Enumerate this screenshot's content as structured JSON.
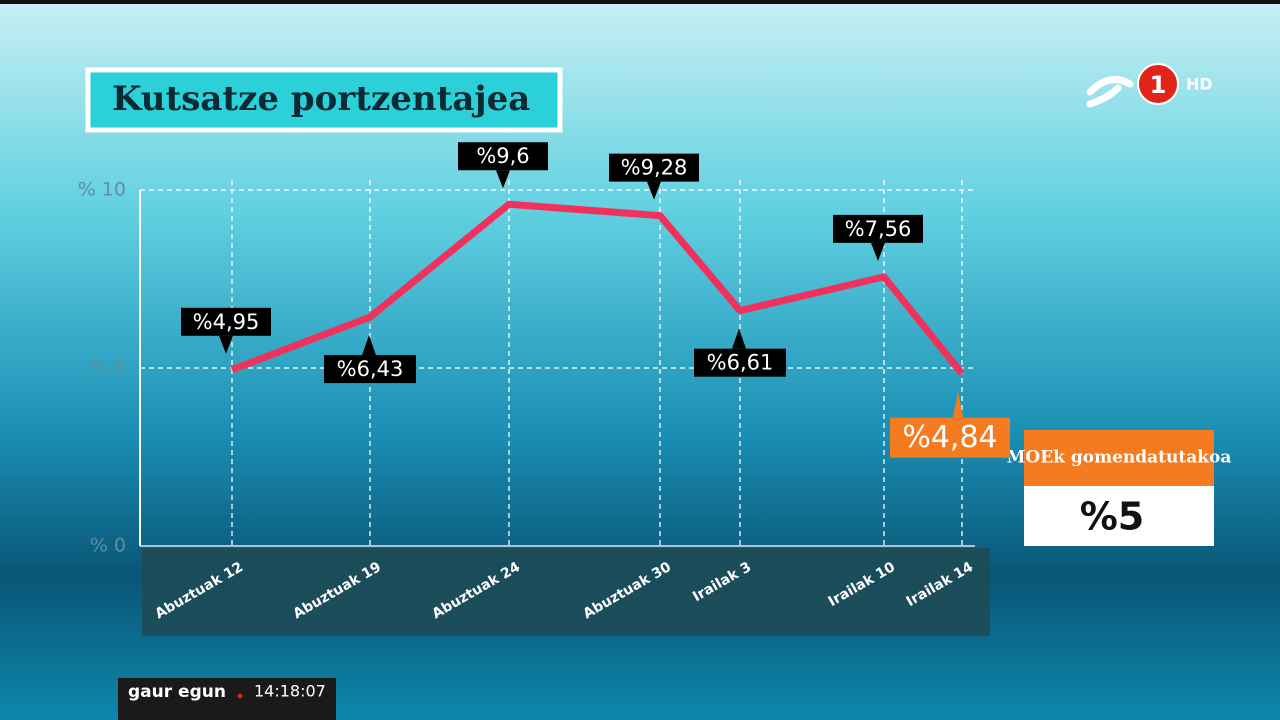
{
  "chart_data": {
    "type": "line",
    "title": "Kutsatze portzentajea",
    "categories": [
      "Abuztuak 12",
      "Abuztuak 19",
      "Abuztuak 24",
      "Abuztuak 30",
      "Irailak 3",
      "Irailak 10",
      "Irailak 14"
    ],
    "series": [
      {
        "color": "#f2305c",
        "values": [
          4.95,
          6.43,
          9.6,
          9.28,
          6.61,
          7.56,
          4.84
        ],
        "value_labels": [
          "%4,95",
          "%6,43",
          "%9,6",
          "%9,28",
          "%6,61",
          "%7,56",
          "%4,84"
        ]
      }
    ],
    "ylim": [
      0,
      10
    ],
    "yticks": [
      {
        "value": 0,
        "label": "% 0"
      },
      {
        "value": 5,
        "label": "% 5"
      },
      {
        "value": 10,
        "label": "% 10"
      }
    ],
    "grid": true,
    "reference": {
      "title": "MOEk gomendatutakoa",
      "label": "%5"
    }
  },
  "channel": {
    "number": "1",
    "quality": "HD"
  },
  "ticker": {
    "program": "gaur egun",
    "time": "14:18:07"
  }
}
